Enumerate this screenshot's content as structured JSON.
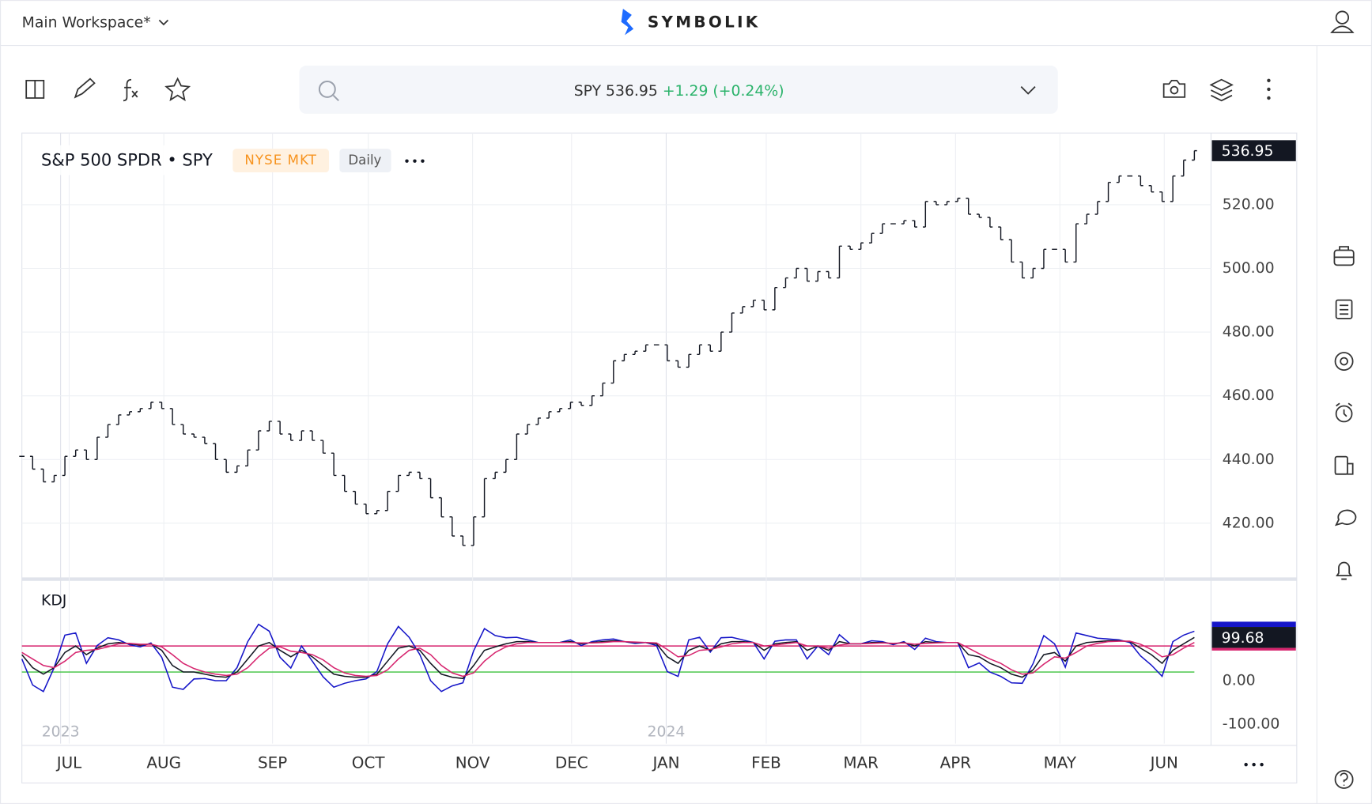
{
  "header": {
    "workspace": "Main Workspace*",
    "brand": "SYMBOLIK"
  },
  "quote": {
    "symbol": "SPY",
    "price": "536.95",
    "change": "+1.29",
    "percent": "(+0.24%)"
  },
  "legend": {
    "title": "S&P 500 SPDR • SPY",
    "exchange": "NYSE MKT",
    "interval": "Daily"
  },
  "chart_data": [
    {
      "type": "ohlc",
      "color": "#131722",
      "values": [
        441,
        437,
        433,
        435,
        441,
        443,
        440,
        447,
        451,
        454,
        455,
        456,
        458,
        456,
        451,
        448,
        447,
        445,
        440,
        436,
        438,
        443,
        449,
        452,
        448,
        446,
        449,
        446,
        442,
        435,
        430,
        426,
        423,
        424,
        430,
        435,
        436,
        434,
        428,
        422,
        416,
        413,
        422,
        434,
        436,
        440,
        448,
        451,
        453,
        455,
        456,
        458,
        457,
        460,
        464,
        471,
        473,
        474,
        476,
        476,
        471,
        469,
        473,
        476,
        474,
        480,
        486,
        488,
        490,
        487,
        494,
        497,
        500,
        496,
        499,
        497,
        507,
        506,
        508,
        511,
        514,
        514,
        515,
        513,
        521,
        520,
        521,
        522,
        517,
        516,
        513,
        509,
        502,
        497,
        500,
        506,
        506,
        502,
        514,
        517,
        521,
        527,
        529,
        529,
        526,
        524,
        521,
        529,
        534,
        536.95
      ],
      "xlim": [
        0,
        109
      ],
      "ylim": [
        403,
        542.5
      ],
      "yticks": [
        {
          "value": 420,
          "label": "420.00"
        },
        {
          "value": 440,
          "label": "440.00"
        },
        {
          "value": 460,
          "label": "460.00"
        },
        {
          "value": 480,
          "label": "480.00"
        },
        {
          "value": 500,
          "label": "500.00"
        },
        {
          "value": 520,
          "label": "520.00"
        }
      ],
      "xticks": [
        {
          "value": 4.4,
          "label": "JUL"
        },
        {
          "value": 13.2,
          "label": "AUG"
        },
        {
          "value": 23.3,
          "label": "SEP"
        },
        {
          "value": 32.2,
          "label": "OCT"
        },
        {
          "value": 41.9,
          "label": "NOV"
        },
        {
          "value": 51.1,
          "label": "DEC"
        },
        {
          "value": 59.9,
          "label": "JAN"
        },
        {
          "value": 69.2,
          "label": "FEB"
        },
        {
          "value": 78.0,
          "label": "MAR"
        },
        {
          "value": 86.8,
          "label": "APR"
        },
        {
          "value": 96.5,
          "label": "MAY"
        },
        {
          "value": 106.2,
          "label": "JUN"
        }
      ],
      "year_labels": [
        {
          "value": 3.6,
          "label": "2023"
        },
        {
          "value": 59.9,
          "label": "2024"
        }
      ],
      "last_price": {
        "value": 536.95,
        "label": "536.95"
      },
      "grid": true
    },
    {
      "type": "line",
      "title": "KDJ",
      "xlim": [
        0,
        109
      ],
      "y2lim": [
        -145,
        228
      ],
      "y2ticks": [
        {
          "value": 0,
          "label": "0.00"
        },
        {
          "value": -100,
          "label": "-100.00"
        }
      ],
      "levels": [
        {
          "value": 80,
          "color": "#d6246e"
        },
        {
          "value": 20,
          "color": "#3cc23c"
        }
      ],
      "last_value": {
        "value": 99.68,
        "label": "99.68"
      },
      "series": [
        {
          "name": "J",
          "color": "#1515c8",
          "axis": "y2",
          "values": [
            50,
            -10,
            -25,
            30,
            105,
            110,
            40,
            81,
            99,
            94,
            83,
            78,
            87,
            54,
            -15,
            -20,
            4,
            5,
            0,
            0,
            30,
            90,
            130,
            114,
            54,
            29,
            80,
            45,
            9,
            -15,
            -6,
            0,
            4,
            21,
            85,
            125,
            100,
            60,
            0,
            -25,
            -12,
            -5,
            69,
            120,
            104,
            99,
            100,
            94,
            88,
            88,
            88,
            94,
            81,
            90,
            94,
            96,
            90,
            86,
            88,
            81,
            21,
            10,
            94,
            100,
            66,
            99,
            100,
            94,
            88,
            50,
            91,
            94,
            94,
            50,
            80,
            60,
            106,
            85,
            85,
            92,
            90,
            83,
            90,
            72,
            98,
            90,
            88,
            88,
            30,
            41,
            20,
            10,
            -5,
            -6,
            39,
            104,
            85,
            31,
            110,
            104,
            98,
            96,
            94,
            88,
            57,
            36,
            10,
            90,
            105,
            114
          ]
        },
        {
          "name": "K",
          "color": "#131722",
          "axis": "y2",
          "values": [
            60,
            30,
            15,
            30,
            65,
            80,
            60,
            75,
            85,
            88,
            85,
            82,
            85,
            70,
            35,
            20,
            20,
            15,
            10,
            8,
            20,
            50,
            80,
            88,
            70,
            55,
            70,
            55,
            35,
            15,
            10,
            8,
            8,
            15,
            45,
            75,
            80,
            70,
            40,
            15,
            8,
            5,
            35,
            70,
            78,
            85,
            90,
            90,
            88,
            88,
            88,
            90,
            85,
            88,
            90,
            92,
            90,
            88,
            88,
            85,
            55,
            40,
            70,
            80,
            70,
            85,
            90,
            90,
            88,
            70,
            85,
            88,
            90,
            70,
            80,
            70,
            90,
            85,
            85,
            88,
            88,
            85,
            88,
            80,
            90,
            88,
            88,
            88,
            60,
            55,
            40,
            30,
            15,
            8,
            25,
            60,
            65,
            45,
            80,
            88,
            90,
            92,
            92,
            90,
            75,
            60,
            40,
            70,
            85,
            99.68
          ]
        },
        {
          "name": "D",
          "color": "#d6246e",
          "axis": "y2",
          "values": [
            65,
            50,
            35,
            30,
            45,
            65,
            70,
            72,
            78,
            85,
            86,
            84,
            84,
            78,
            60,
            40,
            28,
            20,
            15,
            12,
            15,
            30,
            55,
            75,
            78,
            68,
            65,
            60,
            48,
            30,
            18,
            12,
            10,
            12,
            25,
            50,
            70,
            75,
            60,
            35,
            18,
            10,
            18,
            45,
            65,
            78,
            85,
            88,
            88,
            88,
            88,
            88,
            87,
            87,
            88,
            90,
            90,
            89,
            88,
            87,
            72,
            55,
            58,
            70,
            72,
            78,
            85,
            88,
            88,
            80,
            82,
            85,
            88,
            80,
            80,
            75,
            82,
            85,
            85,
            86,
            87,
            86,
            87,
            84,
            86,
            87,
            88,
            88,
            75,
            62,
            50,
            40,
            25,
            15,
            18,
            38,
            55,
            52,
            65,
            80,
            86,
            90,
            91,
            91,
            84,
            72,
            55,
            60,
            75,
            88
          ]
        }
      ]
    }
  ]
}
